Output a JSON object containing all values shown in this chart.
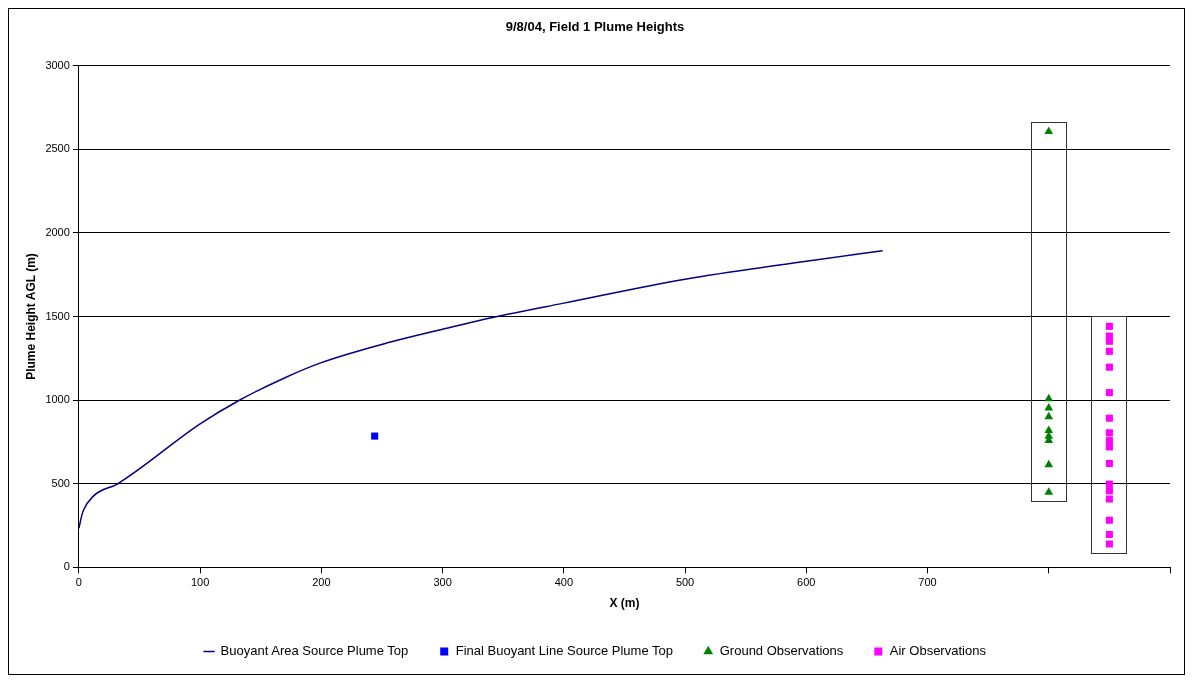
{
  "chart_data": {
    "type": "scatter",
    "title": "9/8/04, Field 1 Plume Heights",
    "xlabel": "X (m)",
    "ylabel": "Plume Height AGL (m)",
    "xlim": [
      0,
      900
    ],
    "xticks": [
      0,
      100,
      200,
      300,
      400,
      500,
      600,
      700,
      {
        "value": 800,
        "label": null
      },
      {
        "value": 900,
        "label": null
      }
    ],
    "ylim": [
      0,
      3000
    ],
    "yticks": [
      0,
      500,
      1000,
      1500,
      2000,
      2500,
      3000
    ],
    "grid": "y",
    "legend": "bottom",
    "series": [
      {
        "name": "Buoyant Area Source Plume Top",
        "type": "line",
        "marker": "none",
        "color": "#000080",
        "x": [
          0,
          3,
          12,
          32,
          100,
          132,
          170,
          200,
          257,
          300,
          345,
          400,
          500,
          600,
          663
        ],
        "values": [
          233,
          326,
          426,
          500,
          858,
          998,
          1134,
          1224,
          1347,
          1424,
          1500,
          1580,
          1723,
          1830,
          1893
        ]
      },
      {
        "name": "Final Buoyant Line Source Plume Top",
        "marker": "square",
        "color": "#0000ff",
        "x": [
          244
        ],
        "values": [
          785
        ]
      },
      {
        "name": "Ground Observations",
        "marker": "triangle",
        "color": "#008000",
        "x": [
          800,
          800,
          800,
          800,
          800,
          800,
          800,
          800,
          800
        ],
        "values": [
          2606,
          1008,
          953,
          900,
          818,
          784,
          758,
          614,
          449
        ]
      },
      {
        "name": "Air Observations",
        "marker": "square",
        "color": "#ff00ff",
        "x": [
          850,
          850,
          850,
          850,
          850,
          850,
          850,
          850,
          850,
          850,
          850,
          850,
          850,
          850,
          850,
          850,
          850
        ],
        "values": [
          1441,
          1383,
          1352,
          1292,
          1197,
          1045,
          892,
          805,
          758,
          720,
          621,
          498,
          458,
          409,
          282,
          197,
          140
        ]
      }
    ]
  }
}
